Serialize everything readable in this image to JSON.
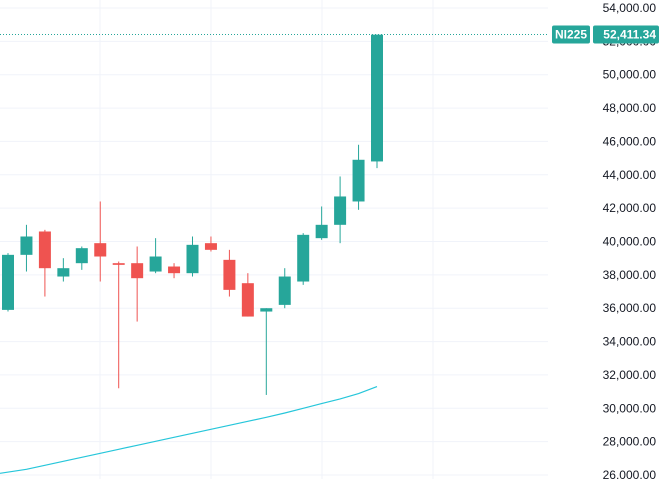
{
  "chart_data": {
    "type": "candlestick",
    "symbol": "NI225",
    "last_price_label": "52,411.34",
    "last_price": 52411.34,
    "ylim": [
      26000,
      54800
    ],
    "y_ticks": [
      26000,
      28000,
      30000,
      32000,
      34000,
      36000,
      38000,
      40000,
      42000,
      44000,
      46000,
      48000,
      50000,
      52000,
      54000
    ],
    "y_tick_labels": [
      "26,000.00",
      "28,000.00",
      "30,000.00",
      "32,000.00",
      "34,000.00",
      "36,000.00",
      "38,000.00",
      "40,000.00",
      "42,000.00",
      "44,000.00",
      "46,000.00",
      "48,000.00",
      "50,000.00",
      "52,000.00",
      "54,000.00"
    ],
    "colors": {
      "up": "#26a69a",
      "down": "#ef5350",
      "moving_average": "#26c6da",
      "grid": "#f0f3fa",
      "badge": "#26a69a"
    },
    "candles": [
      {
        "open": 35900,
        "high": 39300,
        "low": 35800,
        "close": 39200
      },
      {
        "open": 39200,
        "high": 41000,
        "low": 38200,
        "close": 40300
      },
      {
        "open": 40600,
        "high": 40700,
        "low": 36700,
        "close": 38400
      },
      {
        "open": 37900,
        "high": 39000,
        "low": 37600,
        "close": 38400
      },
      {
        "open": 38700,
        "high": 39700,
        "low": 38300,
        "close": 39600
      },
      {
        "open": 39900,
        "high": 42400,
        "low": 37600,
        "close": 39100
      },
      {
        "open": 38700,
        "high": 38800,
        "low": 31200,
        "close": 38600
      },
      {
        "open": 38700,
        "high": 39700,
        "low": 35200,
        "close": 37800
      },
      {
        "open": 38200,
        "high": 40200,
        "low": 38100,
        "close": 39100
      },
      {
        "open": 38500,
        "high": 38700,
        "low": 37800,
        "close": 38100
      },
      {
        "open": 38100,
        "high": 40300,
        "low": 37900,
        "close": 39800
      },
      {
        "open": 39900,
        "high": 40300,
        "low": 39400,
        "close": 39500
      },
      {
        "open": 38900,
        "high": 39500,
        "low": 36700,
        "close": 37100
      },
      {
        "open": 37500,
        "high": 38100,
        "low": 35500,
        "close": 35500
      },
      {
        "open": 35800,
        "high": 36000,
        "low": 30800,
        "close": 36000
      },
      {
        "open": 36200,
        "high": 38400,
        "low": 36000,
        "close": 37900
      },
      {
        "open": 37600,
        "high": 40500,
        "low": 37400,
        "close": 40400
      },
      {
        "open": 40200,
        "high": 42100,
        "low": 40100,
        "close": 41000
      },
      {
        "open": 41000,
        "high": 43900,
        "low": 39900,
        "close": 42700
      },
      {
        "open": 42400,
        "high": 45800,
        "low": 41900,
        "close": 44900
      },
      {
        "open": 44800,
        "high": 52400,
        "low": 44400,
        "close": 52400
      }
    ],
    "moving_average": [
      26100,
      26340,
      26580,
      26820,
      27060,
      27300,
      27540,
      27780,
      28020,
      28260,
      28500,
      28740,
      28980,
      29220,
      29460,
      29720,
      30000,
      30280,
      30560,
      30880,
      31300
    ]
  }
}
